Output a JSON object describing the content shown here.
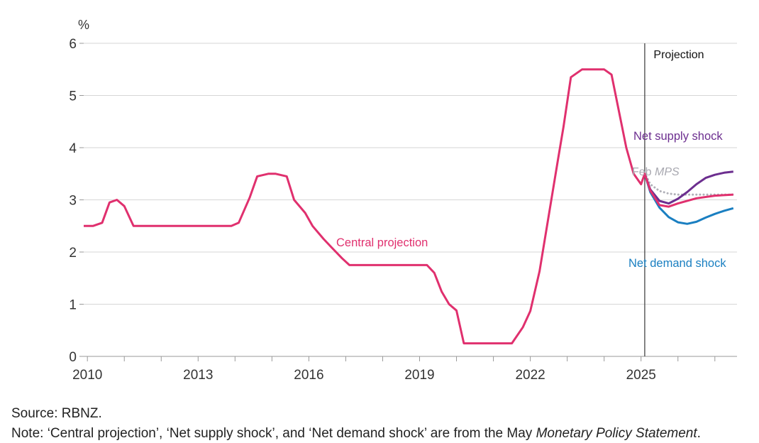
{
  "chart_data": {
    "type": "line",
    "yunit": "%",
    "ylim": [
      0,
      6
    ],
    "yticks": [
      0,
      1,
      2,
      3,
      4,
      5,
      6
    ],
    "xlim": [
      2009.9,
      2027.6
    ],
    "xticks": [
      2010,
      2011,
      2012,
      2013,
      2014,
      2015,
      2016,
      2017,
      2018,
      2019,
      2020,
      2021,
      2022,
      2023,
      2024,
      2025,
      2026,
      2027
    ],
    "xtick_labels": [
      {
        "x": 2010,
        "label": "2010"
      },
      {
        "x": 2013,
        "label": "2013"
      },
      {
        "x": 2016,
        "label": "2016"
      },
      {
        "x": 2019,
        "label": "2019"
      },
      {
        "x": 2022,
        "label": "2022"
      },
      {
        "x": 2025,
        "label": "2025"
      }
    ],
    "grid": "horizontal",
    "projection_start": 2025.1,
    "projection_label": "Projection",
    "series": [
      {
        "name": "Feb MPS",
        "name_plain": "Feb ",
        "name_italic": "MPS",
        "color": "#b0b0b8",
        "dashed": true,
        "x": [
          2025.1,
          2025.25,
          2025.5,
          2025.75,
          2026.0,
          2026.5,
          2027.0,
          2027.5
        ],
        "values": [
          3.52,
          3.3,
          3.17,
          3.12,
          3.1,
          3.1,
          3.1,
          3.1
        ]
      },
      {
        "name": "Net supply shock",
        "color": "#6c2e8f",
        "x": [
          2025.1,
          2025.25,
          2025.5,
          2025.75,
          2026.0,
          2026.25,
          2026.5,
          2026.75,
          2027.0,
          2027.25,
          2027.5
        ],
        "values": [
          3.5,
          3.2,
          2.98,
          2.93,
          3.02,
          3.15,
          3.3,
          3.42,
          3.48,
          3.52,
          3.54
        ]
      },
      {
        "name": "Net demand shock",
        "color": "#1a7fc1",
        "x": [
          2025.1,
          2025.25,
          2025.5,
          2025.75,
          2026.0,
          2026.25,
          2026.5,
          2026.75,
          2027.0,
          2027.25,
          2027.5
        ],
        "values": [
          3.5,
          3.15,
          2.85,
          2.67,
          2.57,
          2.54,
          2.58,
          2.66,
          2.73,
          2.79,
          2.84
        ]
      },
      {
        "name": "Central projection",
        "color": "#e0306e",
        "x": [
          2009.9,
          2010.15,
          2010.4,
          2010.6,
          2010.8,
          2011.0,
          2011.25,
          2011.5,
          2012.0,
          2012.5,
          2013.0,
          2013.5,
          2013.9,
          2014.1,
          2014.4,
          2014.6,
          2014.9,
          2015.1,
          2015.4,
          2015.6,
          2015.9,
          2016.1,
          2016.4,
          2016.6,
          2016.9,
          2017.1,
          2017.5,
          2018.0,
          2018.5,
          2019.0,
          2019.2,
          2019.4,
          2019.6,
          2019.8,
          2020.0,
          2020.2,
          2020.4,
          2020.6,
          2021.0,
          2021.5,
          2021.8,
          2022.0,
          2022.25,
          2022.5,
          2022.75,
          2022.9,
          2023.1,
          2023.4,
          2023.6,
          2023.8,
          2024.0,
          2024.2,
          2024.4,
          2024.6,
          2024.8,
          2025.0,
          2025.1,
          2025.25,
          2025.5,
          2025.75,
          2026.0,
          2026.5,
          2027.0,
          2027.5
        ],
        "values": [
          2.5,
          2.5,
          2.56,
          2.95,
          3.0,
          2.88,
          2.5,
          2.5,
          2.5,
          2.5,
          2.5,
          2.5,
          2.5,
          2.56,
          3.05,
          3.45,
          3.5,
          3.5,
          3.45,
          3.0,
          2.75,
          2.5,
          2.25,
          2.1,
          1.88,
          1.75,
          1.75,
          1.75,
          1.75,
          1.75,
          1.75,
          1.6,
          1.24,
          1.0,
          0.88,
          0.25,
          0.25,
          0.25,
          0.25,
          0.25,
          0.56,
          0.87,
          1.63,
          2.7,
          3.77,
          4.4,
          5.35,
          5.5,
          5.5,
          5.5,
          5.5,
          5.4,
          4.7,
          4.0,
          3.5,
          3.3,
          3.5,
          3.18,
          2.9,
          2.87,
          2.93,
          3.03,
          3.08,
          3.1
        ]
      }
    ],
    "annotations": [
      {
        "text": "Central projection",
        "color": "#e0306e"
      },
      {
        "text": "Net supply shock",
        "color": "#6c2e8f"
      },
      {
        "text": "Net demand shock",
        "color": "#1a7fc1"
      }
    ]
  },
  "footer": {
    "source": "Source: RBNZ.",
    "note_prefix": "Note: ‘Central projection’, ‘Net supply shock’, and ‘Net demand shock’ are from the May ",
    "note_italic": "Monetary Policy Statement",
    "note_suffix": "."
  }
}
